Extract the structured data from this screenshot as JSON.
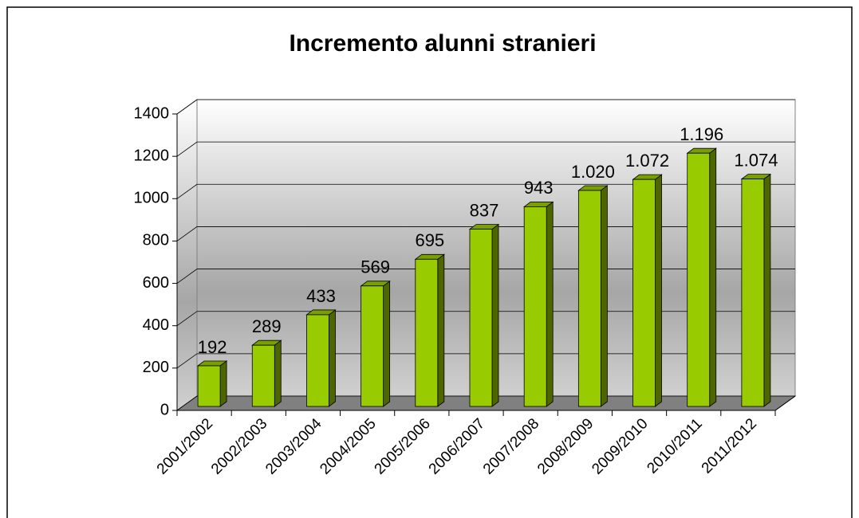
{
  "chart_data": {
    "type": "bar",
    "title": "Incremento alunni stranieri",
    "categories": [
      "2001/2002",
      "2002/2003",
      "2003/2004",
      "2004/2005",
      "2005/2006",
      "2006/2007",
      "2007/2008",
      "2008/2009",
      "2009/2010",
      "2010/2011",
      "2011/2012"
    ],
    "values": [
      192,
      289,
      433,
      569,
      695,
      837,
      943,
      1020,
      1072,
      1196,
      1074
    ],
    "value_labels": [
      "192",
      "289",
      "433",
      "569",
      "695",
      "837",
      "943",
      "1.020",
      "1.072",
      "1.196",
      "1.074"
    ],
    "color": "#99cc00",
    "ylim": [
      0,
      1400
    ],
    "yticks": [
      0,
      200,
      400,
      600,
      800,
      1000,
      1200,
      1400
    ],
    "grid": true
  }
}
